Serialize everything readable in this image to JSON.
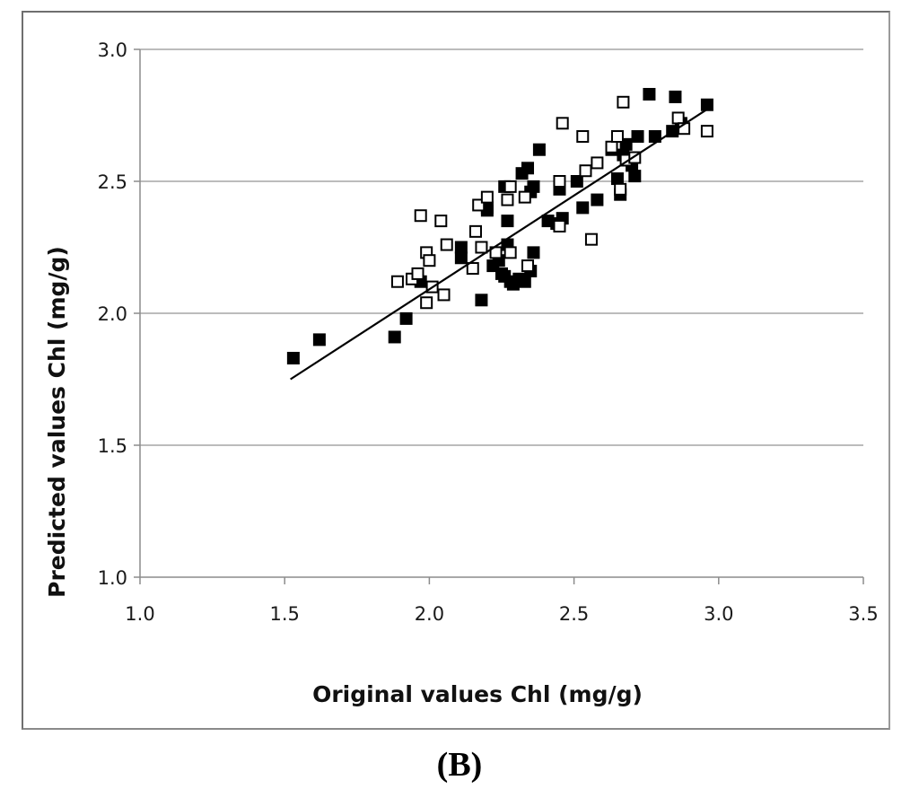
{
  "panel_label": "(B)",
  "chart_data": {
    "type": "scatter",
    "title": "",
    "xlabel": "Original values Chl (mg/g)",
    "ylabel": "Predicted values Chl (mg/g)",
    "xlim": [
      1.0,
      3.5
    ],
    "ylim": [
      1.0,
      3.0
    ],
    "xticks": [
      "1.0",
      "1.5",
      "2.0",
      "2.5",
      "3.0",
      "3.5"
    ],
    "yticks": [
      "1.0",
      "1.5",
      "2.0",
      "2.5",
      "3.0"
    ],
    "grid": "horizontal",
    "colors": {
      "grid": "#a6a6a6",
      "axis": "#8c8c8c",
      "marker": "#000000",
      "open_fill": "#ffffff",
      "trendline": "#000000"
    },
    "series": [
      {
        "name": "filled squares",
        "marker": "filled-square",
        "points": [
          [
            1.53,
            1.83
          ],
          [
            1.62,
            1.9
          ],
          [
            1.88,
            1.91
          ],
          [
            1.92,
            1.98
          ],
          [
            1.97,
            2.12
          ],
          [
            2.11,
            2.25
          ],
          [
            2.11,
            2.21
          ],
          [
            2.18,
            2.05
          ],
          [
            2.2,
            2.4
          ],
          [
            2.2,
            2.39
          ],
          [
            2.22,
            2.18
          ],
          [
            2.24,
            2.2
          ],
          [
            2.25,
            2.15
          ],
          [
            2.26,
            2.48
          ],
          [
            2.26,
            2.14
          ],
          [
            2.27,
            2.35
          ],
          [
            2.27,
            2.26
          ],
          [
            2.28,
            2.12
          ],
          [
            2.29,
            2.11
          ],
          [
            2.31,
            2.13
          ],
          [
            2.32,
            2.53
          ],
          [
            2.33,
            2.12
          ],
          [
            2.34,
            2.55
          ],
          [
            2.35,
            2.16
          ],
          [
            2.35,
            2.46
          ],
          [
            2.36,
            2.48
          ],
          [
            2.36,
            2.23
          ],
          [
            2.38,
            2.62
          ],
          [
            2.41,
            2.35
          ],
          [
            2.44,
            2.34
          ],
          [
            2.45,
            2.47
          ],
          [
            2.46,
            2.36
          ],
          [
            2.51,
            2.5
          ],
          [
            2.53,
            2.4
          ],
          [
            2.58,
            2.43
          ],
          [
            2.63,
            2.62
          ],
          [
            2.65,
            2.51
          ],
          [
            2.66,
            2.45
          ],
          [
            2.67,
            2.6
          ],
          [
            2.68,
            2.64
          ],
          [
            2.7,
            2.56
          ],
          [
            2.71,
            2.52
          ],
          [
            2.72,
            2.67
          ],
          [
            2.76,
            2.83
          ],
          [
            2.78,
            2.67
          ],
          [
            2.84,
            2.69
          ],
          [
            2.85,
            2.82
          ],
          [
            2.87,
            2.72
          ],
          [
            2.96,
            2.79
          ]
        ]
      },
      {
        "name": "open squares",
        "marker": "open-square",
        "points": [
          [
            1.89,
            2.12
          ],
          [
            1.94,
            2.13
          ],
          [
            1.96,
            2.15
          ],
          [
            1.97,
            2.37
          ],
          [
            1.99,
            2.23
          ],
          [
            1.99,
            2.04
          ],
          [
            2.0,
            2.2
          ],
          [
            2.01,
            2.1
          ],
          [
            2.04,
            2.35
          ],
          [
            2.05,
            2.07
          ],
          [
            2.06,
            2.26
          ],
          [
            2.15,
            2.17
          ],
          [
            2.16,
            2.31
          ],
          [
            2.17,
            2.41
          ],
          [
            2.18,
            2.25
          ],
          [
            2.2,
            2.44
          ],
          [
            2.23,
            2.23
          ],
          [
            2.27,
            2.43
          ],
          [
            2.28,
            2.48
          ],
          [
            2.28,
            2.23
          ],
          [
            2.33,
            2.44
          ],
          [
            2.34,
            2.18
          ],
          [
            2.45,
            2.33
          ],
          [
            2.45,
            2.5
          ],
          [
            2.46,
            2.72
          ],
          [
            2.53,
            2.67
          ],
          [
            2.54,
            2.54
          ],
          [
            2.56,
            2.28
          ],
          [
            2.58,
            2.57
          ],
          [
            2.63,
            2.63
          ],
          [
            2.65,
            2.67
          ],
          [
            2.66,
            2.47
          ],
          [
            2.67,
            2.8
          ],
          [
            2.68,
            2.58
          ],
          [
            2.71,
            2.59
          ],
          [
            2.86,
            2.74
          ],
          [
            2.88,
            2.7
          ],
          [
            2.96,
            2.69
          ]
        ]
      }
    ],
    "trendline": {
      "x": [
        1.52,
        2.97
      ],
      "y": [
        1.75,
        2.78
      ]
    }
  }
}
